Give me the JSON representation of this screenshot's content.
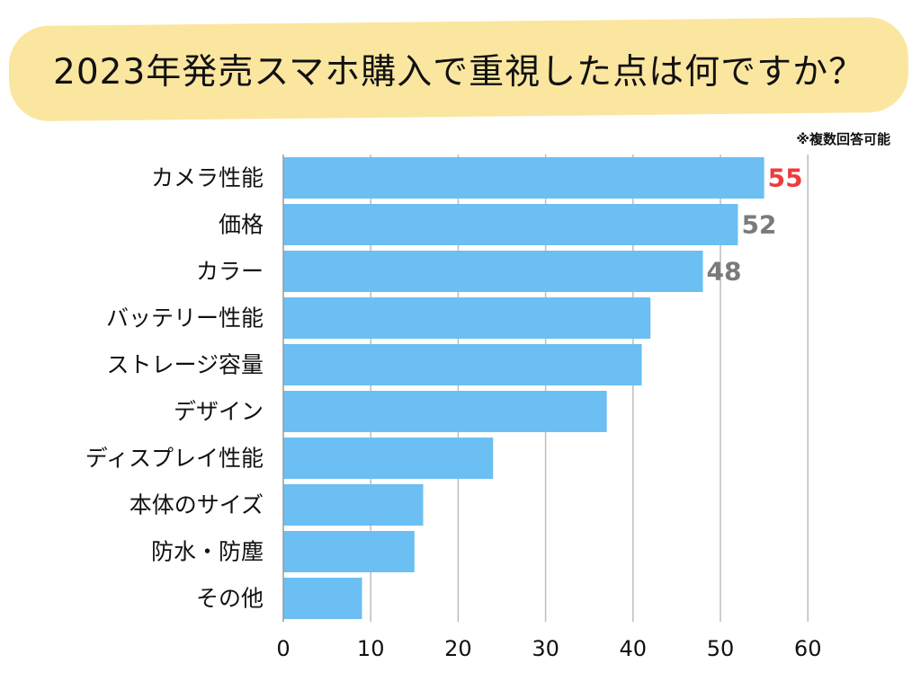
{
  "title": "2023年発売スマホ購入で重視した点は何ですか？",
  "note": "※複数回答可能",
  "colors": {
    "banner": "#fbe6a0",
    "bar": "#6bbff2",
    "highlight_label": "#ee3b3b",
    "value_label": "#7a7a7a",
    "grid": "#bdbdbd"
  },
  "chart_data": {
    "type": "bar",
    "orientation": "horizontal",
    "title": "2023年発売スマホ購入で重視した点は何ですか？",
    "categories": [
      "カメラ性能",
      "価格",
      "カラー",
      "バッテリー性能",
      "ストレージ容量",
      "デザイン",
      "ディスプレイ性能",
      "本体のサイズ",
      "防水・防塵",
      "その他"
    ],
    "values": [
      55,
      52,
      48,
      42,
      41,
      37,
      24,
      16,
      15,
      9
    ],
    "data_labels": [
      {
        "index": 0,
        "text": "55",
        "highlight": true
      },
      {
        "index": 1,
        "text": "52",
        "highlight": false
      },
      {
        "index": 2,
        "text": "48",
        "highlight": false
      }
    ],
    "xlim": [
      0,
      60
    ],
    "xticks": [
      0,
      10,
      20,
      30,
      40,
      50,
      60
    ],
    "xlabel": "",
    "ylabel": "",
    "grid": true
  }
}
